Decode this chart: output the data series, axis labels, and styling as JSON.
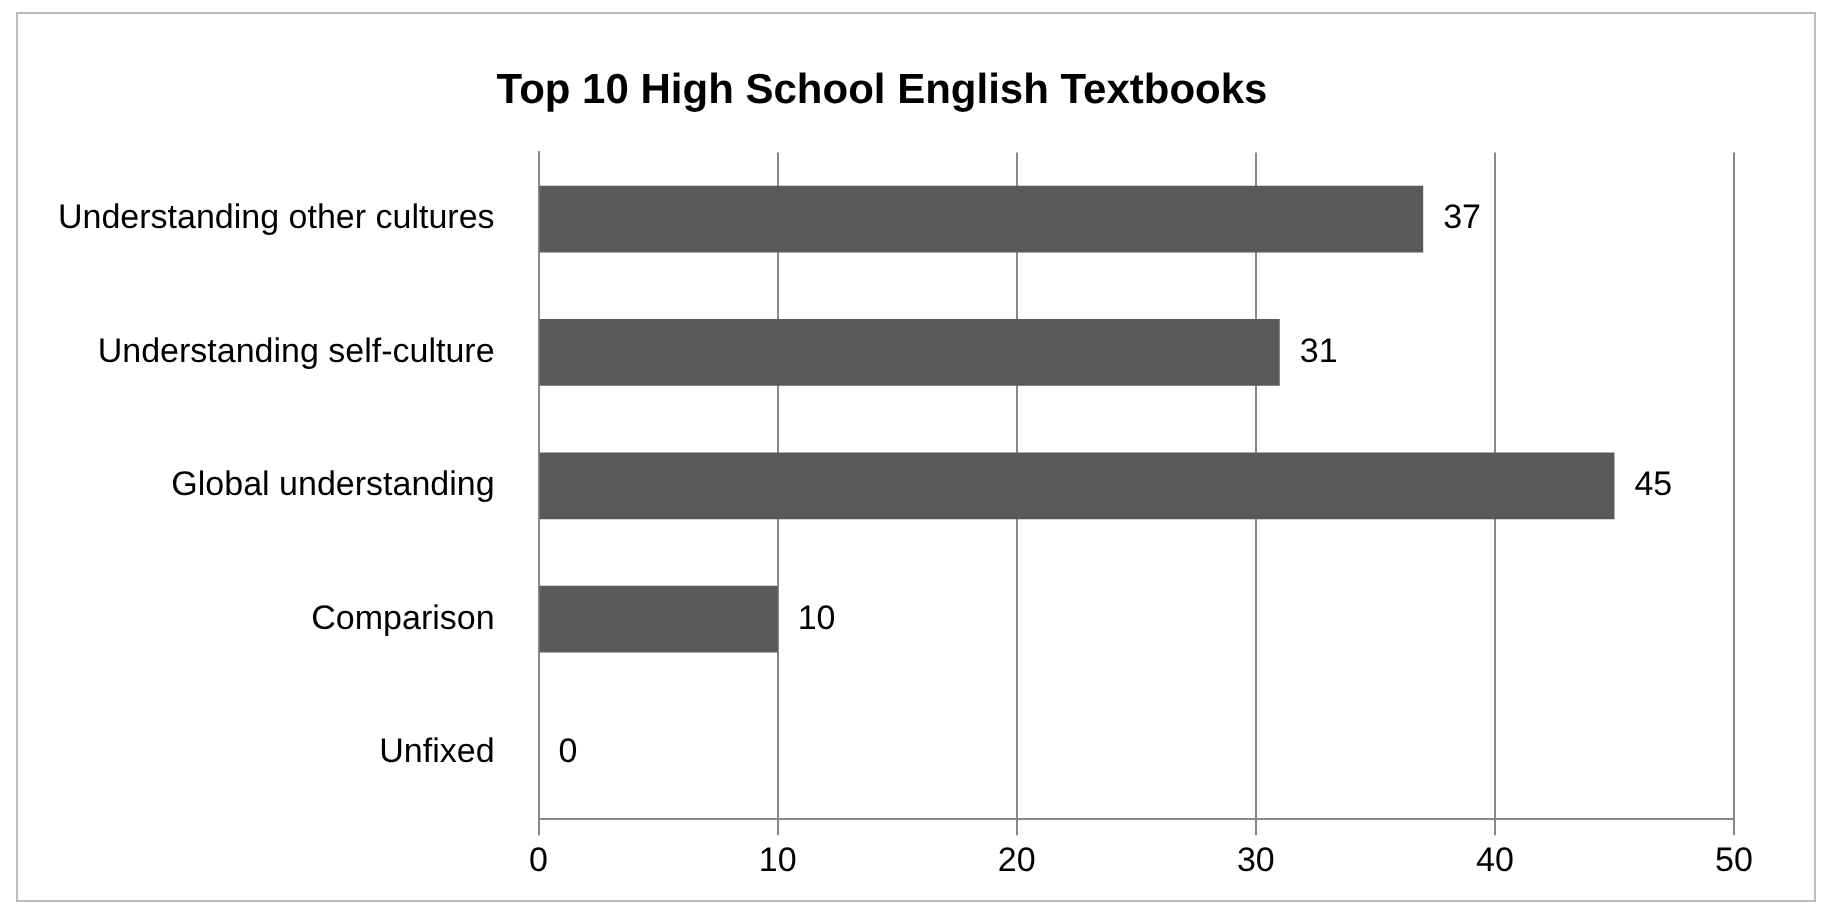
{
  "chart_data": {
    "type": "bar",
    "orientation": "horizontal",
    "title": "Top 10 High School English Textbooks",
    "categories": [
      "Understanding other cultures",
      "Understanding self-culture",
      "Global understanding",
      "Comparison",
      "Unfixed"
    ],
    "values": [
      37,
      31,
      45,
      10,
      0
    ],
    "color": "#595959",
    "xlim": [
      0,
      50
    ],
    "xticks": [
      0,
      10,
      20,
      30,
      40,
      50
    ],
    "grid": "x",
    "legend": false,
    "data_labels": true
  }
}
